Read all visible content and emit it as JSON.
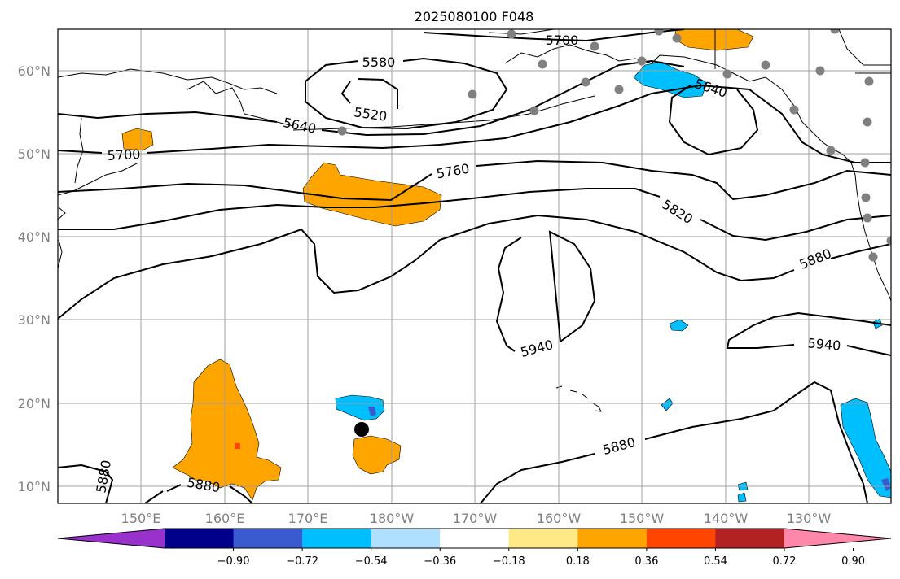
{
  "title": "2025080100 F048",
  "map": {
    "lon_ticks": [
      "150°E",
      "160°E",
      "170°E",
      "180°W",
      "170°W",
      "160°W",
      "150°W",
      "140°W",
      "130°W"
    ],
    "lat_ticks": [
      "60°N",
      "50°N",
      "40°N",
      "30°N",
      "20°N",
      "10°N"
    ],
    "gridlines": true
  },
  "contours": {
    "labels": [
      "5700",
      "5580",
      "5520",
      "5640",
      "5700",
      "5760",
      "5640",
      "5820",
      "5880",
      "5940",
      "5940",
      "5880",
      "5880",
      "5880"
    ]
  },
  "colorbar": {
    "ticks": [
      "−0.90",
      "−0.72",
      "−0.54",
      "−0.36",
      "−0.18",
      "0.18",
      "0.36",
      "0.54",
      "0.72",
      "0.90"
    ],
    "colors": [
      "#9932cc",
      "#00008b",
      "#3a5bd0",
      "#00bfff",
      "#b0e0ff",
      "#ffffff",
      "#ffe987",
      "#ffa500",
      "#ff4500",
      "#b22222",
      "#ff88aa"
    ],
    "extend": "both"
  },
  "colors": {
    "positive_anomaly": "#ffa500",
    "negative_anomaly": "#00bfff",
    "strong_negative": "#3a5bd0",
    "strong_positive": "#ff4500",
    "station_marker": "#808080",
    "center_marker": "#000000",
    "contour": "#000000",
    "grid": "#a0a0a0"
  }
}
